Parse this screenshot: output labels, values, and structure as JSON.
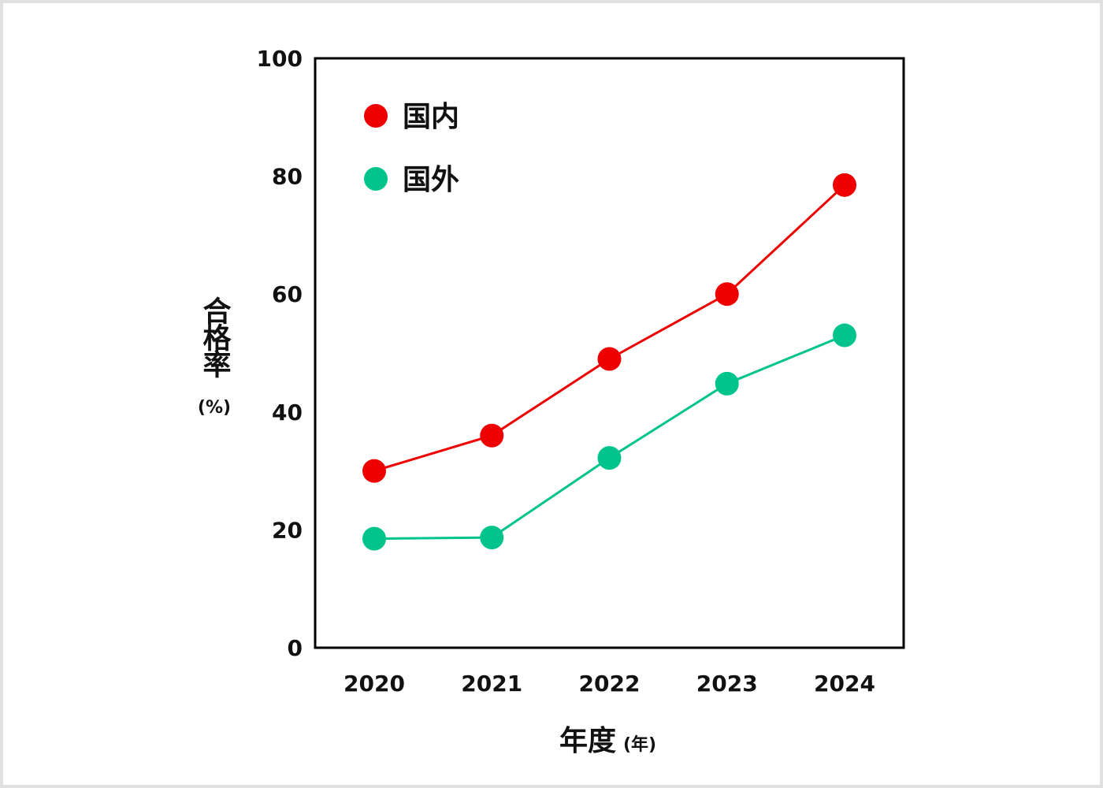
{
  "chart_data": {
    "type": "line",
    "categories": [
      "2020",
      "2021",
      "2022",
      "2023",
      "2024"
    ],
    "series": [
      {
        "name": "国内",
        "color": "#ee0000",
        "values": [
          30,
          36,
          49,
          60,
          78.5
        ]
      },
      {
        "name": "国外",
        "color": "#00c48c",
        "values": [
          18.5,
          18.7,
          32.2,
          44.8,
          53
        ]
      }
    ],
    "ylim": [
      0,
      100
    ],
    "yticks": [
      "0",
      "20",
      "40",
      "60",
      "80",
      "100"
    ],
    "ylabel": "合格率",
    "ylabel_unit": "(%)",
    "xlabel": "年度",
    "xlabel_unit": "(年)",
    "legend_position": "top-left",
    "grid": false
  }
}
